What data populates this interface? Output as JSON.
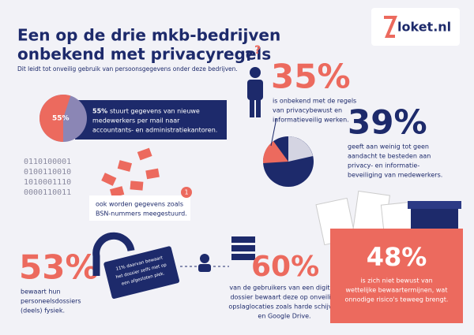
{
  "header": {
    "title_lines": [
      "Een op de drie mkb-bedrijven",
      "onbekend met privacyregels"
    ],
    "subtitle": "Dit leidt tot onveilig gebruik van persoonsgegevens onder deze bedrijven."
  },
  "logo": "loket.nl",
  "mail_stat": {
    "value": 55,
    "label": "55%",
    "lines": [
      "stuurt gegevens van nieuwe",
      "medewerkers per mail naar",
      "accountants- en administratiekantoren."
    ]
  },
  "binary": [
    "0110100001",
    "0100110010",
    "1010001110",
    "0000110011"
  ],
  "note": {
    "badge": "1",
    "lines": [
      "ook worden gegevens zoals",
      "BSN-nummers meegestuurd."
    ]
  },
  "stat_35": {
    "label": "35%",
    "lines": [
      "is onbekend met de regels",
      "van privacybewust en",
      "informatieveilig werken."
    ]
  },
  "stat_39": {
    "label": "39%",
    "lines": [
      "geeft aan weinig tot geen",
      "aandacht te besteden aan",
      "privacy- en informatie-",
      "beveiliging van medewerkers."
    ]
  },
  "stat_53": {
    "label": "53%",
    "lines": [
      "bewaart hun",
      "personeelsdossiers",
      "(deels) fysiek."
    ],
    "lock_lines": [
      "11% daarvan bewaart",
      "het dossier zelfs niet op",
      "een afgesloten plek."
    ]
  },
  "stat_60": {
    "label": "60%",
    "lines": [
      "van de gebruikers van een digitaal",
      "dossier bewaart deze op onveilige",
      "opslaglocaties zoals harde schijven",
      "en Google Drive."
    ]
  },
  "stat_48": {
    "label": "48%",
    "lines": [
      "is zich niet bewust van",
      "wettelijke bewaartermijnen, wat",
      "onnodige risico's teweeg brengt."
    ]
  }
}
